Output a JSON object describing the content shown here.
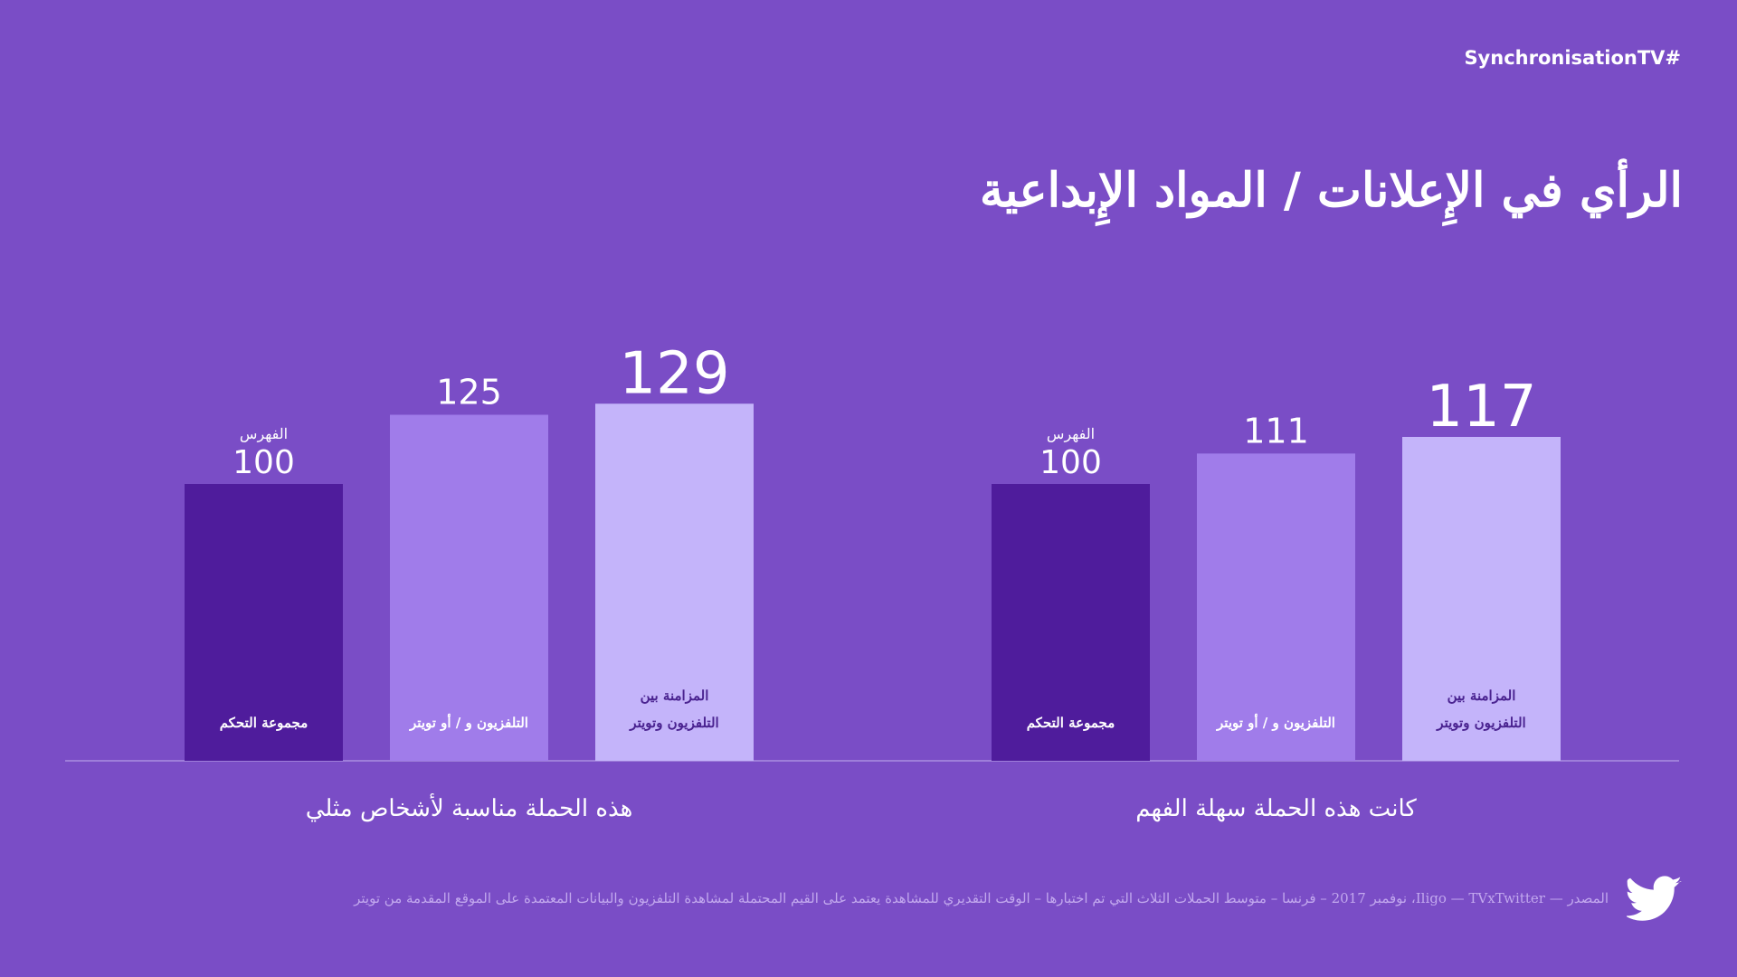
{
  "header": {
    "hashtag": "SynchronisationTV#",
    "title": "الرأي في الإِعلانات / المواد الإِبداعية"
  },
  "footer": {
    "source": "المصدر — Iligo — TVxTwitter، نوفمبر 2017 – فرنسا – متوسط الحملات الثلاث التي تم اختبارها – الوقت التقديري للمشاهدة يعتمد على القيم المحتملة لمشاهدة التلفزيون والبيانات المعتمدة على الموقع المقدمة من تويتر",
    "logo_icon": "twitter-bird-icon"
  },
  "colors": {
    "background": "#7a4dc6",
    "control": "#4f1c9c",
    "tv_or_twitter": "#a07cea",
    "sync": "#c4b4fa",
    "baseline": "#a98fe0"
  },
  "chart_data": [
    {
      "type": "bar",
      "xlabel": "هذه الحملة مناسبة لأشخاص مثلي",
      "categories": [
        "مجموعة التحكم",
        "التلفزيون و / أو تويتر",
        "المزامنة بين التلفزيون وتويتر"
      ],
      "category_lines": [
        [
          "مجموعة التحكم"
        ],
        [
          "التلفزيون و / أو تويتر"
        ],
        [
          "المزامنة بين",
          "التلفزيون وتويتر"
        ]
      ],
      "values": [
        100,
        125,
        129
      ],
      "index_label": "الفهرس",
      "ylim": [
        0,
        129
      ]
    },
    {
      "type": "bar",
      "xlabel": "كانت هذه الحملة سهلة الفهم",
      "categories": [
        "مجموعة التحكم",
        "التلفزيون و / أو تويتر",
        "المزامنة بين التلفزيون وتويتر"
      ],
      "category_lines": [
        [
          "مجموعة التحكم"
        ],
        [
          "التلفزيون و / أو تويتر"
        ],
        [
          "المزامنة بين",
          "التلفزيون وتويتر"
        ]
      ],
      "values": [
        100,
        111,
        117
      ],
      "index_label": "الفهرس",
      "ylim": [
        0,
        129
      ]
    }
  ]
}
